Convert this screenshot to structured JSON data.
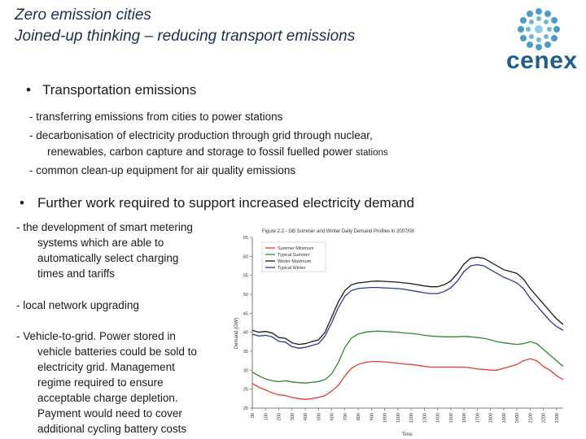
{
  "slide": {
    "title_line1": "Zero emission cities",
    "title_line2": "Joined-up thinking – reducing transport emissions",
    "logo_text": "cenex",
    "bullet1": {
      "heading": "Transportation emissions",
      "items": [
        "- transferring emissions from cities to power stations",
        "- decarbonisation of electricity production through grid through nuclear,",
        "renewables, carbon capture and storage to fossil fuelled power",
        "stations",
        "- common clean-up equipment for air quality emissions"
      ]
    },
    "bullet2": {
      "heading": "Further work required to support increased electricity demand"
    },
    "left_text": {
      "smart_1": "- the development of smart metering",
      "smart_2": "systems which are able to",
      "smart_3": "automatically select charging",
      "smart_4": "times and tariffs",
      "local": "- local network upgrading",
      "v2g_1": "- Vehicle-to-grid. Power stored in",
      "v2g_2": "vehicle batteries could be sold to",
      "v2g_3": "electricity grid.  Management",
      "v2g_4": "regime required to ensure",
      "v2g_5": "acceptable charge depletion.",
      "v2g_6": "Payment would need to cover",
      "v2g_7": "additional cycling battery costs"
    }
  },
  "chart_data": {
    "type": "line",
    "title": "Figure 2.2 - GB Summer and Winter Daily Demand Profiles in 2007/08",
    "xlabel": "Time",
    "ylabel": "Demand (GW)",
    "ylim": [
      20,
      65
    ],
    "yticks": [
      20,
      25,
      30,
      35,
      40,
      45,
      50,
      55,
      60,
      65
    ],
    "x": [
      "00:00",
      "00:30",
      "01:00",
      "01:30",
      "02:00",
      "02:30",
      "03:00",
      "03:30",
      "04:00",
      "04:30",
      "05:00",
      "05:30",
      "06:00",
      "06:30",
      "07:00",
      "07:30",
      "08:00",
      "08:30",
      "09:00",
      "09:30",
      "10:00",
      "10:30",
      "11:00",
      "11:30",
      "12:00",
      "12:30",
      "13:00",
      "13:30",
      "14:00",
      "14:30",
      "15:00",
      "15:30",
      "16:00",
      "16:30",
      "17:00",
      "17:30",
      "18:00",
      "18:30",
      "19:00",
      "19:30",
      "20:00",
      "20:30",
      "21:00",
      "21:30",
      "22:00",
      "22:30",
      "23:00",
      "23:30"
    ],
    "xticks": [
      "00",
      "100",
      "200",
      "300",
      "400",
      "500",
      "600",
      "700",
      "800",
      "900",
      "1000",
      "1100",
      "1200",
      "1300",
      "1400",
      "1500",
      "1600",
      "1700",
      "1800",
      "1900",
      "2000",
      "2100",
      "2200",
      "2300"
    ],
    "legend_position": "top-left",
    "grid": false,
    "series": [
      {
        "name": "Summer Minimum",
        "color": "#e03c31",
        "values": [
          26.5,
          25.5,
          24.8,
          24.0,
          23.5,
          23.3,
          22.8,
          22.5,
          22.3,
          22.5,
          22.8,
          23.3,
          24.5,
          26.0,
          28.5,
          30.5,
          31.5,
          32.0,
          32.3,
          32.3,
          32.2,
          32.0,
          31.8,
          31.6,
          31.5,
          31.3,
          31.0,
          30.8,
          30.8,
          30.8,
          30.8,
          30.8,
          30.8,
          30.6,
          30.3,
          30.2,
          30.0,
          30.0,
          30.5,
          31.0,
          31.5,
          32.5,
          33.0,
          32.5,
          31.0,
          30.0,
          28.5,
          27.5
        ]
      },
      {
        "name": "Typical Summer",
        "color": "#2e8b2e",
        "values": [
          29.5,
          28.5,
          27.7,
          27.2,
          27.0,
          27.2,
          26.9,
          26.7,
          26.6,
          26.8,
          27.0,
          27.5,
          29.0,
          32.0,
          36.0,
          38.5,
          39.5,
          40.0,
          40.2,
          40.3,
          40.2,
          40.1,
          40.0,
          39.8,
          39.7,
          39.5,
          39.2,
          39.0,
          38.9,
          38.8,
          38.8,
          38.8,
          38.9,
          38.8,
          38.6,
          38.4,
          38.0,
          37.5,
          37.2,
          37.0,
          36.8,
          37.0,
          37.5,
          37.0,
          35.5,
          34.0,
          32.5,
          31.0
        ]
      },
      {
        "name": "Winter Maximum",
        "color": "#1a1a1a",
        "values": [
          40.5,
          40.0,
          40.2,
          39.8,
          38.6,
          38.4,
          37.2,
          36.8,
          37.0,
          37.5,
          38.0,
          40.0,
          44.0,
          48.0,
          51.0,
          52.5,
          53.0,
          53.2,
          53.4,
          53.5,
          53.4,
          53.3,
          53.2,
          53.0,
          52.8,
          52.5,
          52.2,
          52.0,
          52.0,
          52.5,
          53.5,
          55.5,
          58.0,
          59.5,
          59.8,
          59.5,
          58.5,
          57.5,
          56.5,
          56.0,
          55.5,
          54.0,
          51.5,
          49.5,
          47.5,
          45.5,
          43.5,
          42.0
        ]
      },
      {
        "name": "Typical Winter",
        "color": "#2b3990",
        "values": [
          39.5,
          39.0,
          39.2,
          38.8,
          37.6,
          37.4,
          36.2,
          35.8,
          36.0,
          36.5,
          37.0,
          39.0,
          42.5,
          46.5,
          49.5,
          51.0,
          51.5,
          51.7,
          51.8,
          51.8,
          51.7,
          51.6,
          51.5,
          51.3,
          51.0,
          50.7,
          50.4,
          50.2,
          50.2,
          50.7,
          51.7,
          53.5,
          56.0,
          57.5,
          57.8,
          57.5,
          56.5,
          55.5,
          54.5,
          53.8,
          53.0,
          51.5,
          49.0,
          47.0,
          45.0,
          43.0,
          41.5,
          40.5
        ]
      }
    ]
  }
}
